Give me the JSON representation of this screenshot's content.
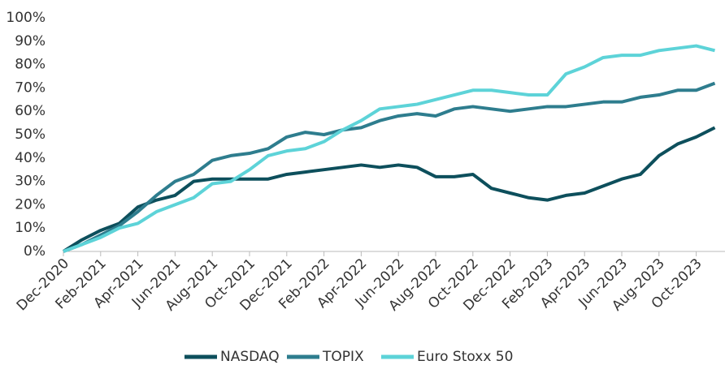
{
  "chart_data": {
    "type": "line",
    "categories": [
      "Dec-2020",
      null,
      "Feb-2021",
      null,
      "Apr-2021",
      null,
      "Jun-2021",
      null,
      "Aug-2021",
      null,
      "Oct-2021",
      null,
      "Dec-2021",
      null,
      "Feb-2022",
      null,
      "Apr-2022",
      null,
      "Jun-2022",
      null,
      "Aug-2022",
      null,
      "Oct-2022",
      null,
      "Dec-2022",
      null,
      "Feb-2023",
      null,
      "Apr-2023",
      null,
      "Jun-2023",
      null,
      "Aug-2023",
      null,
      "Oct-2023",
      null
    ],
    "series": [
      {
        "name": "NASDAQ",
        "color": "#0d4f5c",
        "values": [
          0,
          5,
          9,
          12,
          19,
          22,
          24,
          30,
          31,
          31,
          31,
          31,
          33,
          34,
          35,
          36,
          37,
          36,
          37,
          36,
          32,
          32,
          33,
          27,
          25,
          23,
          22,
          24,
          25,
          28,
          31,
          33,
          41,
          46,
          49,
          53
        ]
      },
      {
        "name": "TOPIX",
        "color": "#2e7d8e",
        "values": [
          0,
          3,
          7,
          11,
          17,
          24,
          30,
          33,
          39,
          41,
          42,
          44,
          49,
          51,
          50,
          52,
          53,
          56,
          58,
          59,
          58,
          61,
          62,
          61,
          60,
          61,
          62,
          62,
          63,
          64,
          64,
          66,
          67,
          69,
          69,
          72
        ]
      },
      {
        "name": "Euro Stoxx 50",
        "color": "#5dd3d8",
        "values": [
          0,
          3,
          6,
          10,
          12,
          17,
          20,
          23,
          29,
          30,
          35,
          41,
          43,
          44,
          47,
          52,
          56,
          61,
          62,
          63,
          65,
          67,
          69,
          69,
          68,
          67,
          67,
          76,
          79,
          83,
          84,
          84,
          86,
          87,
          88,
          86
        ]
      }
    ],
    "ylim": [
      0,
      100
    ],
    "yticks": [
      {
        "value": 0,
        "label": "0%"
      },
      {
        "value": 10,
        "label": "10%"
      },
      {
        "value": 20,
        "label": "20%"
      },
      {
        "value": 30,
        "label": "30%"
      },
      {
        "value": 40,
        "label": "40%"
      },
      {
        "value": 50,
        "label": "50%"
      },
      {
        "value": 60,
        "label": "60%"
      },
      {
        "value": 70,
        "label": "70%"
      },
      {
        "value": 80,
        "label": "80%"
      },
      {
        "value": 90,
        "label": "90%"
      },
      {
        "value": 100,
        "label": "100%"
      }
    ],
    "grid": false,
    "legend": "bottom"
  }
}
